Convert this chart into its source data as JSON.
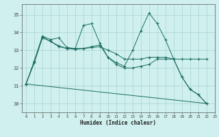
{
  "xlabel": "Humidex (Indice chaleur)",
  "bg_color": "#cff0ee",
  "grid_color": "#a0ccc8",
  "line_color": "#1a6b60",
  "xlim": [
    -0.5,
    23
  ],
  "ylim": [
    29.5,
    35.6
  ],
  "yticks": [
    30,
    31,
    32,
    33,
    34,
    35
  ],
  "xticks": [
    0,
    1,
    2,
    3,
    4,
    5,
    6,
    7,
    8,
    9,
    10,
    11,
    12,
    13,
    14,
    15,
    16,
    17,
    18,
    19,
    20,
    21,
    22,
    23
  ],
  "series": [
    {
      "x": [
        0,
        1,
        2,
        3,
        4,
        5,
        6,
        7,
        8,
        9,
        10,
        11,
        12,
        13,
        14,
        15,
        16,
        17,
        18,
        19,
        20,
        21,
        22
      ],
      "y": [
        31.1,
        32.4,
        33.8,
        33.6,
        33.7,
        33.15,
        33.1,
        34.4,
        34.5,
        33.4,
        32.6,
        32.3,
        32.1,
        33.0,
        34.1,
        35.1,
        34.5,
        33.6,
        32.5,
        31.5,
        30.8,
        30.5,
        30.0
      ]
    },
    {
      "x": [
        0,
        1,
        2,
        3,
        4,
        5,
        6,
        7,
        8,
        9,
        10,
        11,
        12,
        13,
        14,
        15,
        16,
        17,
        18,
        19,
        20,
        21,
        22
      ],
      "y": [
        31.1,
        32.3,
        33.75,
        33.5,
        33.25,
        33.1,
        33.05,
        33.1,
        33.15,
        33.2,
        33.0,
        32.8,
        32.5,
        32.5,
        32.5,
        32.6,
        32.6,
        32.6,
        32.5,
        32.5,
        32.5,
        32.5,
        32.5
      ]
    },
    {
      "x": [
        0,
        1,
        2,
        3,
        4,
        5,
        6,
        7,
        8,
        9,
        10,
        11,
        12,
        13,
        14,
        15,
        16,
        17,
        18,
        19,
        20,
        21,
        22
      ],
      "y": [
        31.1,
        32.3,
        33.7,
        33.5,
        33.2,
        33.1,
        33.1,
        33.1,
        33.2,
        33.3,
        32.6,
        32.2,
        32.0,
        32.0,
        32.1,
        32.2,
        32.5,
        32.5,
        32.5,
        31.5,
        30.8,
        30.5,
        30.0
      ]
    },
    {
      "x": [
        0,
        22
      ],
      "y": [
        31.1,
        30.0
      ]
    }
  ]
}
